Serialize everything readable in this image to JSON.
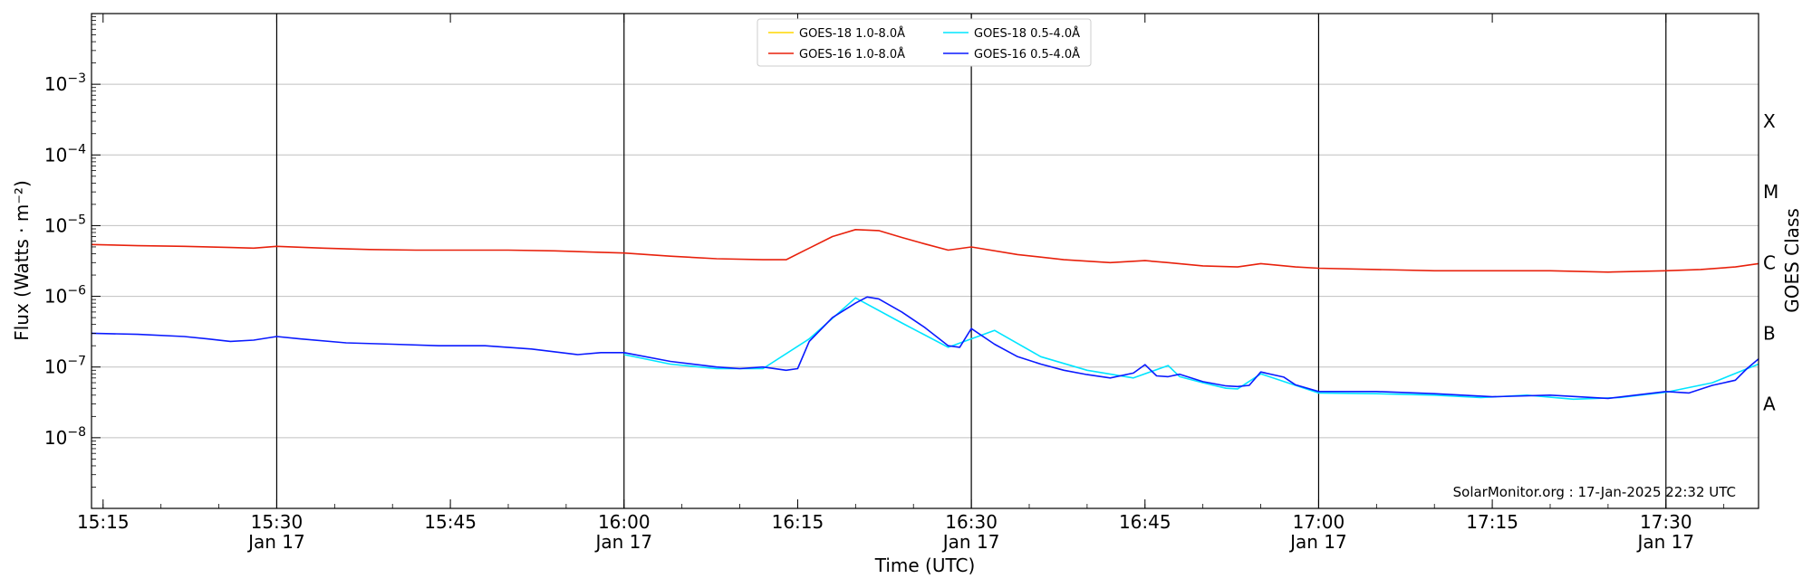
{
  "chart_data": {
    "type": "line",
    "xlabel": "Time (UTC)",
    "ylabel": "Flux (Watts · m⁻²)",
    "y2label": "GOES Class",
    "y_scale": "log",
    "ylim": [
      1e-09,
      0.01
    ],
    "xlim": [
      "2025-01-17 15:14",
      "2025-01-17 17:38"
    ],
    "grid": "horizontal at decades",
    "legend_position": "top-center",
    "credit": "SolarMonitor.org : 17-Jan-2025 22:32 UTC",
    "y_ticks": [
      {
        "value": 1e-08,
        "mantissa": "10",
        "exponent": "−8"
      },
      {
        "value": 1e-07,
        "mantissa": "10",
        "exponent": "−7"
      },
      {
        "value": 1e-06,
        "mantissa": "10",
        "exponent": "−6"
      },
      {
        "value": 1e-05,
        "mantissa": "10",
        "exponent": "−5"
      },
      {
        "value": 0.0001,
        "mantissa": "10",
        "exponent": "−4"
      },
      {
        "value": 0.001,
        "mantissa": "10",
        "exponent": "−3"
      }
    ],
    "class_labels": [
      {
        "label": "A",
        "value": 3e-08
      },
      {
        "label": "B",
        "value": 3e-07
      },
      {
        "label": "C",
        "value": 3e-06
      },
      {
        "label": "M",
        "value": 3e-05
      },
      {
        "label": "X",
        "value": 0.0003
      }
    ],
    "x_ticks": [
      {
        "time": "15:15",
        "line1": "15:15",
        "line2": ""
      },
      {
        "time": "15:30",
        "line1": "15:30",
        "line2": "Jan 17"
      },
      {
        "time": "15:45",
        "line1": "15:45",
        "line2": ""
      },
      {
        "time": "16:00",
        "line1": "16:00",
        "line2": "Jan 17"
      },
      {
        "time": "16:15",
        "line1": "16:15",
        "line2": ""
      },
      {
        "time": "16:30",
        "line1": "16:30",
        "line2": "Jan 17"
      },
      {
        "time": "16:45",
        "line1": "16:45",
        "line2": ""
      },
      {
        "time": "17:00",
        "line1": "17:00",
        "line2": "Jan 17"
      },
      {
        "time": "17:15",
        "line1": "17:15",
        "line2": ""
      },
      {
        "time": "17:30",
        "line1": "17:30",
        "line2": "Jan 17"
      }
    ],
    "vertical_lines": [
      "15:30",
      "16:00",
      "16:30",
      "17:00",
      "17:30"
    ],
    "series": [
      {
        "name": "GOES-18 1.0-8.0Å",
        "color": "#ffd700",
        "x": [],
        "y": []
      },
      {
        "name": "GOES-18 0.5-4.0Å",
        "color": "#00e5ff",
        "x": [
          "16:00",
          "16:04",
          "16:08",
          "16:12",
          "16:16",
          "16:20",
          "16:24",
          "16:28",
          "16:32",
          "16:36",
          "16:40",
          "16:44",
          "16:47",
          "16:48",
          "16:50",
          "16:52",
          "16:53",
          "16:55",
          "16:58",
          "17:00",
          "17:05",
          "17:10",
          "17:14",
          "17:18",
          "17:22",
          "17:26",
          "17:30",
          "17:34",
          "17:38"
        ],
        "y": [
          1.5e-07,
          1.1e-07,
          9.5e-08,
          9.5e-08,
          2.5e-07,
          9.5e-07,
          4.2e-07,
          1.9e-07,
          3.3e-07,
          1.4e-07,
          9e-08,
          7e-08,
          1.05e-07,
          7.3e-08,
          6e-08,
          5e-08,
          4.9e-08,
          8e-08,
          5.5e-08,
          4.3e-08,
          4.2e-08,
          4e-08,
          3.7e-08,
          4e-08,
          3.5e-08,
          3.7e-08,
          4.4e-08,
          6e-08,
          1.1e-07
        ]
      },
      {
        "name": "GOES-16 1.0-8.0Å",
        "color": "#e8210c",
        "x": [
          "15:14",
          "15:18",
          "15:22",
          "15:26",
          "15:28",
          "15:30",
          "15:34",
          "15:38",
          "15:42",
          "15:46",
          "15:50",
          "15:54",
          "15:58",
          "16:00",
          "16:04",
          "16:08",
          "16:12",
          "16:14",
          "16:16",
          "16:18",
          "16:20",
          "16:22",
          "16:24",
          "16:26",
          "16:28",
          "16:30",
          "16:34",
          "16:38",
          "16:42",
          "16:45",
          "16:47",
          "16:50",
          "16:53",
          "16:55",
          "16:58",
          "17:00",
          "17:05",
          "17:10",
          "17:15",
          "17:20",
          "17:25",
          "17:30",
          "17:33",
          "17:36",
          "17:38"
        ],
        "y": [
          5.4e-06,
          5.2e-06,
          5.1e-06,
          4.9e-06,
          4.8e-06,
          5.1e-06,
          4.8e-06,
          4.6e-06,
          4.5e-06,
          4.5e-06,
          4.5e-06,
          4.4e-06,
          4.2e-06,
          4.1e-06,
          3.7e-06,
          3.4e-06,
          3.3e-06,
          3.3e-06,
          4.8e-06,
          7e-06,
          8.8e-06,
          8.5e-06,
          6.8e-06,
          5.5e-06,
          4.5e-06,
          5e-06,
          3.9e-06,
          3.3e-06,
          3e-06,
          3.2e-06,
          3e-06,
          2.7e-06,
          2.6e-06,
          2.9e-06,
          2.6e-06,
          2.5e-06,
          2.4e-06,
          2.3e-06,
          2.3e-06,
          2.3e-06,
          2.2e-06,
          2.3e-06,
          2.4e-06,
          2.6e-06,
          2.9e-06
        ]
      },
      {
        "name": "GOES-16 0.5-4.0Å",
        "color": "#0a1aff",
        "x": [
          "15:14",
          "15:18",
          "15:22",
          "15:24",
          "15:26",
          "15:28",
          "15:30",
          "15:32",
          "15:36",
          "15:40",
          "15:44",
          "15:48",
          "15:52",
          "15:56",
          "15:58",
          "16:00",
          "16:04",
          "16:08",
          "16:10",
          "16:12",
          "16:14",
          "16:15",
          "16:16",
          "16:18",
          "16:20",
          "16:21",
          "16:22",
          "16:24",
          "16:26",
          "16:28",
          "16:29",
          "16:30",
          "16:32",
          "16:34",
          "16:36",
          "16:38",
          "16:40",
          "16:42",
          "16:44",
          "16:45",
          "16:46",
          "16:47",
          "16:48",
          "16:50",
          "16:52",
          "16:53",
          "16:54",
          "16:55",
          "16:57",
          "16:58",
          "17:00",
          "17:05",
          "17:10",
          "17:15",
          "17:20",
          "17:25",
          "17:30",
          "17:32",
          "17:34",
          "17:36",
          "17:37",
          "17:38"
        ],
        "y": [
          3e-07,
          2.9e-07,
          2.7e-07,
          2.5e-07,
          2.3e-07,
          2.4e-07,
          2.7e-07,
          2.5e-07,
          2.2e-07,
          2.1e-07,
          2e-07,
          2e-07,
          1.8e-07,
          1.5e-07,
          1.6e-07,
          1.6e-07,
          1.2e-07,
          1e-07,
          9.5e-08,
          1e-07,
          9e-08,
          9.5e-08,
          2.3e-07,
          5e-07,
          8e-07,
          9.8e-07,
          9.2e-07,
          6e-07,
          3.6e-07,
          2e-07,
          1.9e-07,
          3.5e-07,
          2.1e-07,
          1.4e-07,
          1.1e-07,
          9e-08,
          7.8e-08,
          7e-08,
          8.2e-08,
          1.08e-07,
          7.5e-08,
          7.3e-08,
          7.9e-08,
          6.2e-08,
          5.4e-08,
          5.3e-08,
          5.5e-08,
          8.5e-08,
          7.2e-08,
          5.6e-08,
          4.5e-08,
          4.5e-08,
          4.2e-08,
          3.8e-08,
          4e-08,
          3.6e-08,
          4.5e-08,
          4.3e-08,
          5.5e-08,
          6.5e-08,
          9.5e-08,
          1.3e-07
        ]
      }
    ],
    "legend_layout": [
      [
        "GOES-18 1.0-8.0Å",
        "GOES-18 0.5-4.0Å"
      ],
      [
        "GOES-16 1.0-8.0Å",
        "GOES-16 0.5-4.0Å"
      ]
    ]
  }
}
